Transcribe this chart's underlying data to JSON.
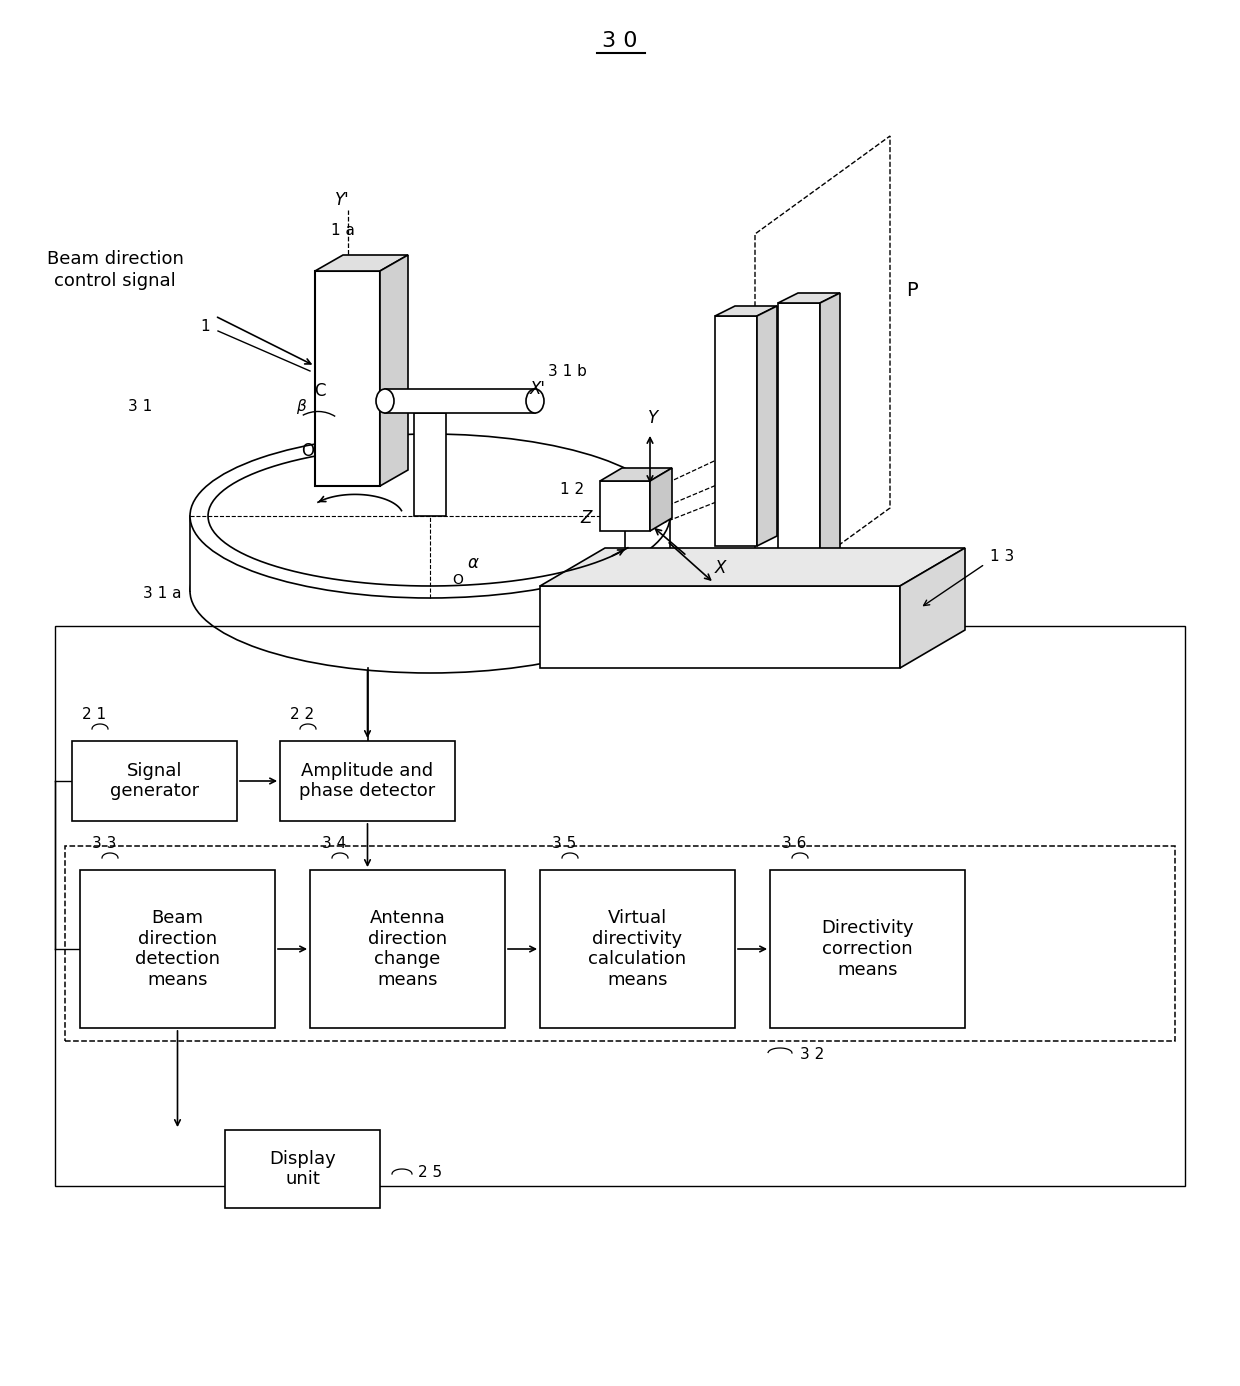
{
  "bg_color": "#ffffff",
  "line_color": "#000000",
  "ref_30": "3 0",
  "ref_1a": "1 a",
  "ref_1": "1",
  "ref_31": "3 1",
  "ref_31a": "3 1 a",
  "ref_31b": "3 1 b",
  "ref_12": "1 2",
  "ref_13": "1 3",
  "ref_21": "2 1",
  "ref_22": "2 2",
  "ref_33": "3 3",
  "ref_34": "3 4",
  "ref_35": "3 5",
  "ref_36": "3 6",
  "ref_25": "2 5",
  "ref_32": "3 2",
  "label_beam": "Beam direction\ncontrol signal",
  "label_P": "P",
  "label_Y": "Y",
  "label_Yprime": "Y'",
  "label_Xprime": "X'",
  "label_X": "X",
  "label_Z": "Z",
  "label_C": "C",
  "label_O": "O",
  "label_alpha": "α",
  "label_beta": "β",
  "label_21": "Signal\ngenerator",
  "label_22": "Amplitude and\nphase detector",
  "label_33": "Beam\ndirection\ndetection\nmeans",
  "label_34": "Antenna\ndirection\nchange\nmeans",
  "label_35": "Virtual\ndirectivity\ncalculation\nmeans",
  "label_36": "Directivity\ncorrection\nmeans",
  "label_25": "Display\nunit"
}
